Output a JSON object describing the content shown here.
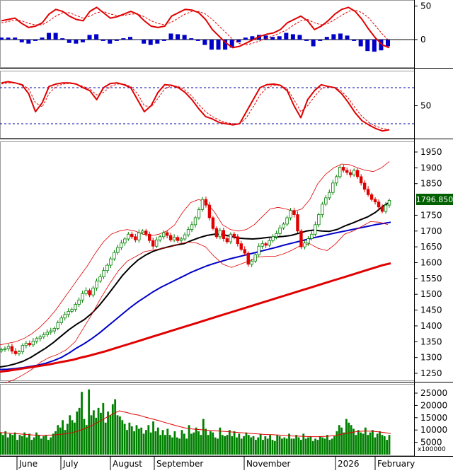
{
  "chart_data": [
    {
      "type": "line",
      "panel": "MACD",
      "yticks": [
        50,
        0
      ],
      "series": [
        {
          "role": "macd",
          "color": "#e00000",
          "values": [
            28,
            30,
            32,
            24,
            18,
            20,
            25,
            38,
            45,
            42,
            35,
            30,
            28,
            42,
            48,
            40,
            32,
            34,
            38,
            42,
            38,
            28,
            20,
            18,
            20,
            35,
            40,
            45,
            44,
            40,
            30,
            15,
            5,
            -5,
            -12,
            -10,
            -5,
            0,
            5,
            8,
            10,
            15,
            25,
            30,
            35,
            28,
            15,
            20,
            28,
            38,
            45,
            48,
            42,
            30,
            15,
            2,
            -8,
            -12
          ]
        },
        {
          "role": "signal",
          "color": "#e00000",
          "values": [
            25,
            27,
            29,
            28,
            24,
            22,
            22,
            28,
            35,
            40,
            40,
            36,
            32,
            35,
            40,
            42,
            38,
            36,
            36,
            38,
            38,
            34,
            28,
            24,
            22,
            26,
            32,
            38,
            42,
            42,
            38,
            30,
            20,
            10,
            0,
            -6,
            -8,
            -5,
            -2,
            2,
            6,
            10,
            15,
            22,
            28,
            30,
            25,
            22,
            24,
            30,
            36,
            42,
            44,
            40,
            32,
            20,
            8,
            -2
          ]
        },
        {
          "role": "histogram",
          "color": "#0000c8",
          "values": [
            3,
            3,
            3,
            -4,
            -6,
            -2,
            3,
            10,
            10,
            2,
            -5,
            -6,
            -4,
            7,
            8,
            -2,
            -6,
            -2,
            2,
            4,
            0,
            -6,
            -8,
            -6,
            -2,
            9,
            8,
            7,
            2,
            -2,
            -8,
            -15,
            -15,
            -15,
            -12,
            -4,
            3,
            5,
            7,
            6,
            4,
            5,
            10,
            8,
            7,
            -2,
            -10,
            -2,
            4,
            8,
            9,
            6,
            -2,
            -10,
            -17,
            -18,
            -16,
            -10
          ]
        }
      ]
    },
    {
      "type": "line",
      "panel": "Stochastic",
      "yticks": [
        50
      ],
      "reference_levels": [
        80,
        20
      ],
      "series": [
        {
          "role": "k",
          "color": "#e00000",
          "values": [
            88,
            90,
            88,
            85,
            70,
            40,
            55,
            82,
            86,
            88,
            88,
            86,
            80,
            75,
            60,
            80,
            87,
            88,
            85,
            80,
            60,
            40,
            50,
            72,
            85,
            84,
            80,
            72,
            60,
            45,
            32,
            28,
            22,
            20,
            18,
            20,
            40,
            60,
            80,
            85,
            86,
            84,
            75,
            50,
            30,
            60,
            75,
            85,
            82,
            80,
            70,
            55,
            38,
            25,
            18,
            12,
            8,
            10
          ]
        },
        {
          "role": "d",
          "color": "#e00000",
          "values": [
            86,
            88,
            88,
            86,
            78,
            55,
            48,
            70,
            82,
            86,
            87,
            86,
            82,
            78,
            68,
            72,
            82,
            86,
            86,
            82,
            70,
            50,
            48,
            62,
            78,
            83,
            82,
            76,
            66,
            52,
            40,
            32,
            26,
            22,
            20,
            20,
            30,
            48,
            68,
            80,
            84,
            84,
            78,
            60,
            40,
            50,
            65,
            78,
            82,
            80,
            74,
            62,
            46,
            32,
            22,
            16,
            12,
            10
          ]
        }
      ]
    },
    {
      "type": "candlestick",
      "panel": "Price",
      "last_value": "1796.850",
      "y_axis": {
        "min": 1215,
        "max": 1965,
        "ticks": [
          1950,
          1900,
          1850,
          1750,
          1700,
          1650,
          1600,
          1550,
          1500,
          1450,
          1400,
          1350,
          1300,
          1250
        ]
      },
      "x_axis": {
        "labels": [
          "June",
          "July",
          "August",
          "September",
          "November",
          "2026",
          "February"
        ]
      },
      "closes": [
        1325,
        1328,
        1335,
        1320,
        1312,
        1318,
        1338,
        1345,
        1340,
        1352,
        1360,
        1365,
        1372,
        1380,
        1384,
        1392,
        1410,
        1425,
        1436,
        1446,
        1452,
        1468,
        1482,
        1502,
        1512,
        1498,
        1520,
        1542,
        1555,
        1575,
        1592,
        1612,
        1632,
        1648,
        1662,
        1675,
        1690,
        1682,
        1672,
        1695,
        1700,
        1690,
        1670,
        1652,
        1672,
        1682,
        1695,
        1686,
        1672,
        1680,
        1670,
        1675,
        1688,
        1705,
        1720,
        1742,
        1768,
        1800,
        1782,
        1742,
        1708,
        1682,
        1702,
        1676,
        1666,
        1690,
        1682,
        1660,
        1642,
        1630,
        1595,
        1605,
        1625,
        1652,
        1660,
        1655,
        1670,
        1682,
        1692,
        1710,
        1722,
        1742,
        1765,
        1752,
        1700,
        1650,
        1662,
        1676,
        1690,
        1720,
        1752,
        1785,
        1805,
        1822,
        1852,
        1872,
        1902,
        1892,
        1885,
        1878,
        1892,
        1872,
        1852,
        1832,
        1815,
        1800,
        1792,
        1776,
        1762,
        1782,
        1797
      ],
      "series": [
        {
          "name": "MA20",
          "color": "#000000",
          "values": [
            1270,
            1274,
            1280,
            1288,
            1300,
            1315,
            1330,
            1348,
            1368,
            1388,
            1405,
            1420,
            1440,
            1466,
            1496,
            1528,
            1560,
            1586,
            1608,
            1624,
            1636,
            1644,
            1650,
            1656,
            1660,
            1670,
            1679,
            1686,
            1690,
            1689,
            1684,
            1678,
            1676,
            1675,
            1677,
            1680,
            1681,
            1683,
            1686,
            1693,
            1700,
            1703,
            1700,
            1699,
            1705,
            1716,
            1725,
            1735,
            1745,
            1759,
            1779,
            1793
          ]
        },
        {
          "name": "MA50",
          "color": "#0000c8",
          "values": [
            1262,
            1263,
            1265,
            1268,
            1272,
            1276,
            1282,
            1290,
            1300,
            1314,
            1330,
            1344,
            1360,
            1378,
            1398,
            1418,
            1438,
            1458,
            1476,
            1492,
            1508,
            1522,
            1534,
            1546,
            1558,
            1570,
            1580,
            1590,
            1598,
            1605,
            1612,
            1618,
            1624,
            1630,
            1636,
            1642,
            1648,
            1655,
            1661,
            1667,
            1673,
            1679,
            1684,
            1690,
            1695,
            1700,
            1705,
            1710,
            1715,
            1720,
            1724,
            1728
          ]
        },
        {
          "name": "MA200",
          "color": "#e00000",
          "values": [
            1255,
            1258,
            1262,
            1266,
            1270,
            1274,
            1278,
            1283,
            1288,
            1293,
            1300,
            1306,
            1313,
            1320,
            1328,
            1336,
            1344,
            1352,
            1360,
            1368,
            1376,
            1384,
            1392,
            1400,
            1408,
            1416,
            1424,
            1432,
            1440,
            1448,
            1456,
            1464,
            1472,
            1480,
            1488,
            1496,
            1504,
            1512,
            1520,
            1528,
            1536,
            1544,
            1552,
            1560,
            1568,
            1576,
            1584,
            1592,
            1598
          ]
        },
        {
          "name": "BB-upper",
          "color": "#e00000",
          "values": [
            1340,
            1345,
            1350,
            1360,
            1375,
            1395,
            1420,
            1450,
            1485,
            1520,
            1555,
            1590,
            1630,
            1665,
            1690,
            1700,
            1705,
            1700,
            1690,
            1685,
            1690,
            1700,
            1720,
            1760,
            1790,
            1800,
            1790,
            1760,
            1720,
            1705,
            1700,
            1705,
            1720,
            1745,
            1770,
            1775,
            1770,
            1762,
            1770,
            1800,
            1850,
            1880,
            1900,
            1912,
            1910,
            1900,
            1892,
            1888,
            1900,
            1920
          ]
        },
        {
          "name": "BB-lower",
          "color": "#e00000",
          "values": [
            1220,
            1230,
            1245,
            1262,
            1285,
            1300,
            1310,
            1325,
            1350,
            1395,
            1440,
            1490,
            1535,
            1575,
            1605,
            1620,
            1635,
            1640,
            1645,
            1650,
            1660,
            1665,
            1662,
            1650,
            1620,
            1595,
            1585,
            1595,
            1605,
            1618,
            1620,
            1620,
            1628,
            1640,
            1655,
            1660,
            1645,
            1638,
            1660,
            1690,
            1700,
            1715,
            1730,
            1728,
            1720
          ]
        }
      ]
    },
    {
      "type": "bar",
      "panel": "Volume",
      "y_axis": {
        "min": 0,
        "max": 27000,
        "ticks": [
          25000,
          20000,
          15000,
          10000,
          5000
        ],
        "unit_label": "x100000"
      },
      "values": [
        9000,
        8000,
        9500,
        7000,
        8500,
        8000,
        9000,
        6000,
        8000,
        7500,
        9000,
        7000,
        8500,
        6000,
        7000,
        9000,
        8000,
        6500,
        7500,
        8000,
        6000,
        7000,
        8500,
        9500,
        12000,
        11000,
        14000,
        10000,
        12500,
        16000,
        14000,
        13000,
        17500,
        19000,
        25500,
        14500,
        12000,
        26500,
        16000,
        18000,
        15000,
        19000,
        17000,
        21000,
        13000,
        17500,
        16000,
        20500,
        22500,
        16000,
        15500,
        14000,
        12500,
        10000,
        13000,
        11500,
        9500,
        12000,
        10500,
        11000,
        8500,
        10000,
        12000,
        9000,
        13500,
        9500,
        11000,
        8000,
        10000,
        8000,
        10500,
        8000,
        7000,
        9500,
        7000,
        6500,
        10000,
        8500,
        6500,
        12000,
        8500,
        9000,
        11000,
        9500,
        8000,
        14500,
        10500,
        8000,
        9500,
        9000,
        7000,
        6500,
        11000,
        8000,
        7500,
        8000,
        10000,
        7500,
        9500,
        7000,
        8500,
        6500,
        7500,
        9000,
        8000,
        7000,
        7500,
        6000,
        7000,
        8500,
        6000,
        7500,
        6500,
        8000,
        6000,
        5500,
        8000,
        7500,
        6500,
        7000,
        6500,
        8500,
        6500,
        6500,
        8000,
        7000,
        6000,
        8500,
        6500,
        7000,
        7500,
        5500,
        6500,
        6000,
        7500,
        7000,
        6500,
        8000,
        6000,
        6500,
        7500,
        9500,
        12000,
        11000,
        9000,
        14500,
        13000,
        12000,
        10500,
        8000,
        10000,
        9000,
        8500,
        11000,
        8000,
        9000,
        10000,
        7000,
        8500,
        9500,
        8000,
        7500,
        6000,
        8000
      ],
      "ma_line": {
        "color": "#e00000",
        "values": [
          9000,
          8800,
          8600,
          8400,
          8200,
          8000,
          7900,
          7900,
          8000,
          8200,
          8500,
          9000,
          9800,
          10800,
          12000,
          13500,
          15000,
          16500,
          17800,
          17200,
          16500,
          16000,
          15200,
          14500,
          13800,
          13000,
          12200,
          11500,
          10800,
          10400,
          10200,
          10000,
          9800,
          9600,
          9400,
          9200,
          9000,
          8800,
          8600,
          8400,
          8200,
          8100,
          8000,
          7800,
          7600,
          7500,
          7400,
          7300,
          7300,
          7400,
          7600,
          8000,
          8500,
          9000,
          9400,
          9600,
          9500,
          9300,
          9000,
          8600
        ]
      }
    }
  ]
}
